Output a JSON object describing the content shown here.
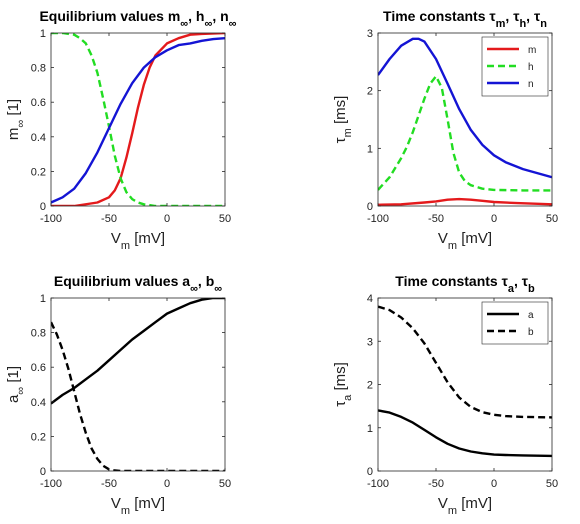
{
  "chart_data": [
    {
      "id": "A",
      "type": "line",
      "title": "Equilibrium values m∞, h∞, n∞",
      "title_parts": {
        "base": "Equilibrium values ",
        "items": [
          [
            "m",
            "∞"
          ],
          [
            "h",
            "∞"
          ],
          [
            "n",
            "∞"
          ]
        ]
      },
      "xlabel": {
        "base": "V",
        "sub": "m",
        "rest": " [mV]"
      },
      "ylabel": {
        "base": "m",
        "sub": "∞",
        "rest": " [1]"
      },
      "xlim": [
        -100,
        50
      ],
      "ylim": [
        0,
        1
      ],
      "xticks": [
        -100,
        -50,
        0,
        50
      ],
      "yticks": [
        0,
        0.2,
        0.4,
        0.6,
        0.8,
        1
      ],
      "grid": false,
      "legend": null,
      "series": [
        {
          "color": "#e41a1c",
          "dash": "solid",
          "x": [
            -100,
            -80,
            -60,
            -50,
            -45,
            -40,
            -35,
            -30,
            -25,
            -20,
            -15,
            -10,
            0,
            10,
            20,
            30,
            50
          ],
          "y": [
            0.0,
            0.0,
            0.02,
            0.05,
            0.09,
            0.16,
            0.28,
            0.42,
            0.57,
            0.7,
            0.8,
            0.87,
            0.94,
            0.97,
            0.99,
            0.995,
            1.0
          ]
        },
        {
          "color": "#22dd22",
          "dash": "dashed",
          "x": [
            -100,
            -90,
            -80,
            -75,
            -70,
            -65,
            -60,
            -55,
            -50,
            -45,
            -40,
            -35,
            -30,
            -25,
            -20,
            -10,
            0,
            25,
            50
          ],
          "y": [
            1.0,
            1.0,
            0.99,
            0.97,
            0.94,
            0.87,
            0.77,
            0.62,
            0.46,
            0.29,
            0.16,
            0.08,
            0.04,
            0.02,
            0.01,
            0.0,
            0.0,
            0.0,
            0.0
          ]
        },
        {
          "color": "#1414d4",
          "dash": "solid",
          "x": [
            -100,
            -90,
            -80,
            -70,
            -60,
            -50,
            -40,
            -30,
            -20,
            -10,
            0,
            10,
            20,
            30,
            40,
            50
          ],
          "y": [
            0.02,
            0.05,
            0.1,
            0.19,
            0.31,
            0.45,
            0.59,
            0.71,
            0.8,
            0.86,
            0.9,
            0.93,
            0.94,
            0.955,
            0.965,
            0.97
          ]
        }
      ]
    },
    {
      "id": "B",
      "type": "line",
      "title": "Time constants τm, τh, τn",
      "title_parts": {
        "base": "Time constants ",
        "items": [
          [
            "τ",
            "m"
          ],
          [
            "τ",
            "h"
          ],
          [
            "τ",
            "n"
          ]
        ]
      },
      "xlabel": {
        "base": "V",
        "sub": "m",
        "rest": " [mV]"
      },
      "ylabel": {
        "base": "τ",
        "sub": "m",
        "rest": " [ms]"
      },
      "xlim": [
        -100,
        50
      ],
      "ylim": [
        0,
        3
      ],
      "xticks": [
        -100,
        -50,
        0,
        50
      ],
      "yticks": [
        0,
        1,
        2,
        3
      ],
      "grid": false,
      "legend": {
        "placement": "top-right",
        "entries": [
          "m",
          "h",
          "n"
        ]
      },
      "series": [
        {
          "name": "m",
          "color": "#e41a1c",
          "dash": "solid",
          "x": [
            -100,
            -80,
            -60,
            -50,
            -40,
            -30,
            -20,
            -10,
            0,
            20,
            50
          ],
          "y": [
            0.02,
            0.03,
            0.06,
            0.08,
            0.11,
            0.12,
            0.11,
            0.09,
            0.07,
            0.05,
            0.03
          ]
        },
        {
          "name": "h",
          "color": "#22dd22",
          "dash": "dashed",
          "x": [
            -100,
            -90,
            -80,
            -75,
            -70,
            -65,
            -60,
            -55,
            -50,
            -45,
            -40,
            -35,
            -30,
            -25,
            -20,
            -10,
            0,
            25,
            50
          ],
          "y": [
            0.28,
            0.5,
            0.83,
            1.03,
            1.28,
            1.57,
            1.86,
            2.12,
            2.25,
            2.05,
            1.5,
            0.92,
            0.58,
            0.43,
            0.36,
            0.3,
            0.28,
            0.27,
            0.27
          ]
        },
        {
          "name": "n",
          "color": "#1414d4",
          "dash": "solid",
          "x": [
            -100,
            -90,
            -80,
            -70,
            -65,
            -60,
            -50,
            -40,
            -30,
            -20,
            -10,
            0,
            10,
            25,
            50
          ],
          "y": [
            2.27,
            2.55,
            2.78,
            2.9,
            2.9,
            2.85,
            2.55,
            2.12,
            1.68,
            1.32,
            1.06,
            0.88,
            0.76,
            0.64,
            0.5
          ]
        }
      ]
    },
    {
      "id": "C",
      "type": "line",
      "title": "Equilibrium values a∞, b∞",
      "title_parts": {
        "base": "Equilibrium values ",
        "items": [
          [
            "a",
            "∞"
          ],
          [
            "b",
            "∞"
          ]
        ]
      },
      "xlabel": {
        "base": "V",
        "sub": "m",
        "rest": " [mV]"
      },
      "ylabel": {
        "base": "a",
        "sub": "∞",
        "rest": " [1]"
      },
      "xlim": [
        -100,
        50
      ],
      "ylim": [
        0,
        1
      ],
      "xticks": [
        -100,
        -50,
        0,
        50
      ],
      "yticks": [
        0,
        0.2,
        0.4,
        0.6,
        0.8,
        1
      ],
      "grid": false,
      "legend": null,
      "series": [
        {
          "color": "#000000",
          "dash": "solid",
          "x": [
            -100,
            -90,
            -80,
            -70,
            -60,
            -50,
            -40,
            -30,
            -20,
            -10,
            0,
            10,
            20,
            30,
            40,
            50
          ],
          "y": [
            0.39,
            0.44,
            0.48,
            0.53,
            0.58,
            0.64,
            0.7,
            0.76,
            0.81,
            0.86,
            0.91,
            0.94,
            0.97,
            0.99,
            1.0,
            1.0
          ]
        },
        {
          "color": "#000000",
          "dash": "dashed",
          "x": [
            -100,
            -95,
            -90,
            -85,
            -80,
            -75,
            -70,
            -65,
            -60,
            -55,
            -50,
            -45,
            -40,
            -30,
            0,
            50
          ],
          "y": [
            0.86,
            0.79,
            0.7,
            0.59,
            0.46,
            0.33,
            0.22,
            0.13,
            0.07,
            0.03,
            0.01,
            0.003,
            0.0,
            0.0,
            0.0,
            0.0
          ]
        }
      ]
    },
    {
      "id": "D",
      "type": "line",
      "title": "Time constants τa, τb",
      "title_parts": {
        "base": "Time constants ",
        "items": [
          [
            "τ",
            "a"
          ],
          [
            "τ",
            "b"
          ]
        ]
      },
      "xlabel": {
        "base": "V",
        "sub": "m",
        "rest": " [mV]"
      },
      "ylabel": {
        "base": "τ",
        "sub": "a",
        "rest": " [ms]"
      },
      "xlim": [
        -100,
        50
      ],
      "ylim": [
        0,
        4
      ],
      "xticks": [
        -100,
        -50,
        0,
        50
      ],
      "yticks": [
        0,
        1,
        2,
        3,
        4
      ],
      "grid": false,
      "legend": {
        "placement": "top-right",
        "entries": [
          "a",
          "b"
        ]
      },
      "series": [
        {
          "name": "a",
          "color": "#000000",
          "dash": "solid",
          "x": [
            -100,
            -90,
            -80,
            -70,
            -60,
            -50,
            -40,
            -30,
            -20,
            -10,
            0,
            10,
            25,
            50
          ],
          "y": [
            1.4,
            1.35,
            1.25,
            1.12,
            0.95,
            0.78,
            0.63,
            0.52,
            0.45,
            0.41,
            0.38,
            0.37,
            0.36,
            0.35
          ]
        },
        {
          "name": "b",
          "color": "#000000",
          "dash": "dashed",
          "x": [
            -100,
            -90,
            -80,
            -70,
            -60,
            -50,
            -40,
            -30,
            -20,
            -10,
            0,
            10,
            25,
            50
          ],
          "y": [
            3.8,
            3.72,
            3.55,
            3.3,
            2.95,
            2.5,
            2.05,
            1.7,
            1.48,
            1.36,
            1.3,
            1.27,
            1.25,
            1.24
          ]
        }
      ]
    }
  ]
}
